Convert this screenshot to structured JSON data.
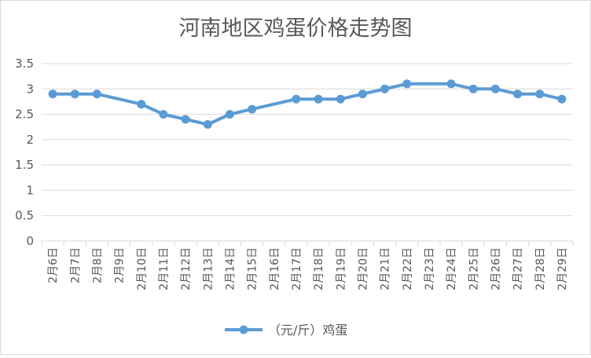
{
  "chart_data": {
    "type": "line",
    "title": "河南地区鸡蛋价格走势图",
    "xlabel": "",
    "ylabel": "",
    "categories": [
      "2月6日",
      "2月7日",
      "2月8日",
      "2月9日",
      "2月10日",
      "2月11日",
      "2月12日",
      "2月13日",
      "2月14日",
      "2月15日",
      "2月16日",
      "2月17日",
      "2月18日",
      "2月19日",
      "2月20日",
      "2月21日",
      "2月22日",
      "2月23日",
      "2月24日",
      "2月25日",
      "2月26日",
      "2月27日",
      "2月28日",
      "2月29日"
    ],
    "series": [
      {
        "name": "（元/斤）鸡蛋",
        "values": [
          2.9,
          2.9,
          2.9,
          null,
          2.7,
          2.5,
          2.4,
          2.3,
          2.5,
          2.6,
          null,
          2.8,
          2.8,
          2.8,
          2.9,
          3.0,
          3.1,
          null,
          3.1,
          3.0,
          3.0,
          2.9,
          2.9,
          2.8
        ]
      }
    ],
    "ylim": [
      0,
      3.5
    ],
    "yticks": [
      "0",
      "0.5",
      "1",
      "1.5",
      "2",
      "2.5",
      "3",
      "3.5"
    ],
    "grid": true,
    "legend": "bottom",
    "colors": {
      "line": "#5b9bd5",
      "grid": "#d9d9d9",
      "text": "#595959"
    }
  }
}
